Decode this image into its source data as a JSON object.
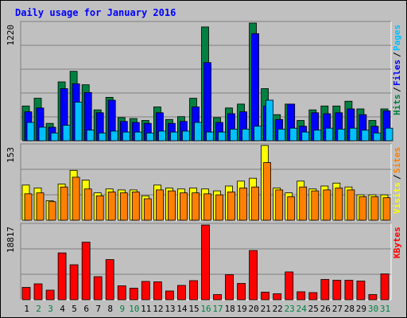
{
  "title": "Daily usage for January 2016",
  "colors": {
    "background": "#c0c0c0",
    "plot_bg": "#c0c0c0",
    "title": "#0000ff",
    "hits": "#008040",
    "files": "#0000ff",
    "pages": "#00c0ff",
    "visits": "#ffff00",
    "sites": "#ff8000",
    "kbytes": "#ff0000",
    "weekend": "#008040",
    "weekday": "#000000"
  },
  "chart_data": [
    {
      "type": "bar",
      "title": "Daily usage for January 2016",
      "ymax_label": "1220",
      "ylim": [
        0,
        1220
      ],
      "grid": true,
      "legend": "right",
      "legend_items": [
        "Pages",
        "Files",
        "Hits"
      ],
      "series": [
        {
          "name": "Hits",
          "values": [
            360,
            440,
            180,
            610,
            720,
            580,
            320,
            450,
            240,
            230,
            210,
            350,
            220,
            250,
            440,
            1180,
            240,
            340,
            380,
            1220,
            540,
            270,
            380,
            210,
            320,
            360,
            360,
            410,
            330,
            210,
            330
          ]
        },
        {
          "name": "Files",
          "values": [
            300,
            340,
            140,
            540,
            590,
            500,
            290,
            420,
            200,
            190,
            180,
            290,
            180,
            200,
            350,
            810,
            190,
            280,
            300,
            1110,
            360,
            220,
            380,
            150,
            290,
            280,
            290,
            330,
            270,
            150,
            310
          ]
        },
        {
          "name": "Pages",
          "values": [
            190,
            140,
            80,
            160,
            400,
            110,
            80,
            100,
            90,
            90,
            80,
            100,
            90,
            100,
            190,
            90,
            90,
            120,
            120,
            150,
            420,
            120,
            130,
            90,
            110,
            130,
            120,
            130,
            110,
            80,
            130
          ]
        }
      ]
    },
    {
      "type": "bar",
      "ymax_label": "153",
      "ylim": [
        0,
        153
      ],
      "grid": true,
      "legend": "right",
      "legend_items": [
        "Sites",
        "Visits"
      ],
      "series": [
        {
          "name": "Visits",
          "values": [
            72,
            66,
            40,
            74,
            102,
            82,
            56,
            64,
            62,
            62,
            50,
            72,
            66,
            64,
            66,
            64,
            60,
            70,
            80,
            86,
            153,
            66,
            56,
            80,
            64,
            70,
            76,
            68,
            52,
            52,
            52
          ]
        },
        {
          "name": "Sites",
          "values": [
            54,
            56,
            38,
            68,
            88,
            64,
            50,
            58,
            56,
            58,
            44,
            62,
            60,
            56,
            56,
            54,
            52,
            58,
            66,
            68,
            118,
            62,
            48,
            68,
            60,
            62,
            66,
            62,
            48,
            48,
            46
          ]
        }
      ]
    },
    {
      "type": "bar",
      "ymax_label": "18817",
      "ylim": [
        0,
        18817
      ],
      "grid": true,
      "legend": "right",
      "legend_items": [
        "KBytes"
      ],
      "series": [
        {
          "name": "KBytes",
          "values": [
            3100,
            4000,
            2400,
            11800,
            8800,
            14500,
            5800,
            10100,
            3500,
            2900,
            4600,
            4500,
            2200,
            3600,
            4800,
            18817,
            1300,
            6300,
            4100,
            12400,
            1900,
            1500,
            7000,
            2000,
            1800,
            5100,
            4900,
            4900,
            4700,
            1300,
            6500
          ]
        }
      ]
    }
  ],
  "days": [
    "1",
    "2",
    "3",
    "4",
    "5",
    "6",
    "7",
    "8",
    "9",
    "10",
    "11",
    "12",
    "13",
    "14",
    "15",
    "16",
    "17",
    "18",
    "19",
    "20",
    "21",
    "22",
    "23",
    "24",
    "25",
    "26",
    "27",
    "28",
    "29",
    "30",
    "31"
  ],
  "weekend_days": [
    2,
    3,
    9,
    10,
    16,
    17,
    23,
    24,
    30,
    31
  ]
}
